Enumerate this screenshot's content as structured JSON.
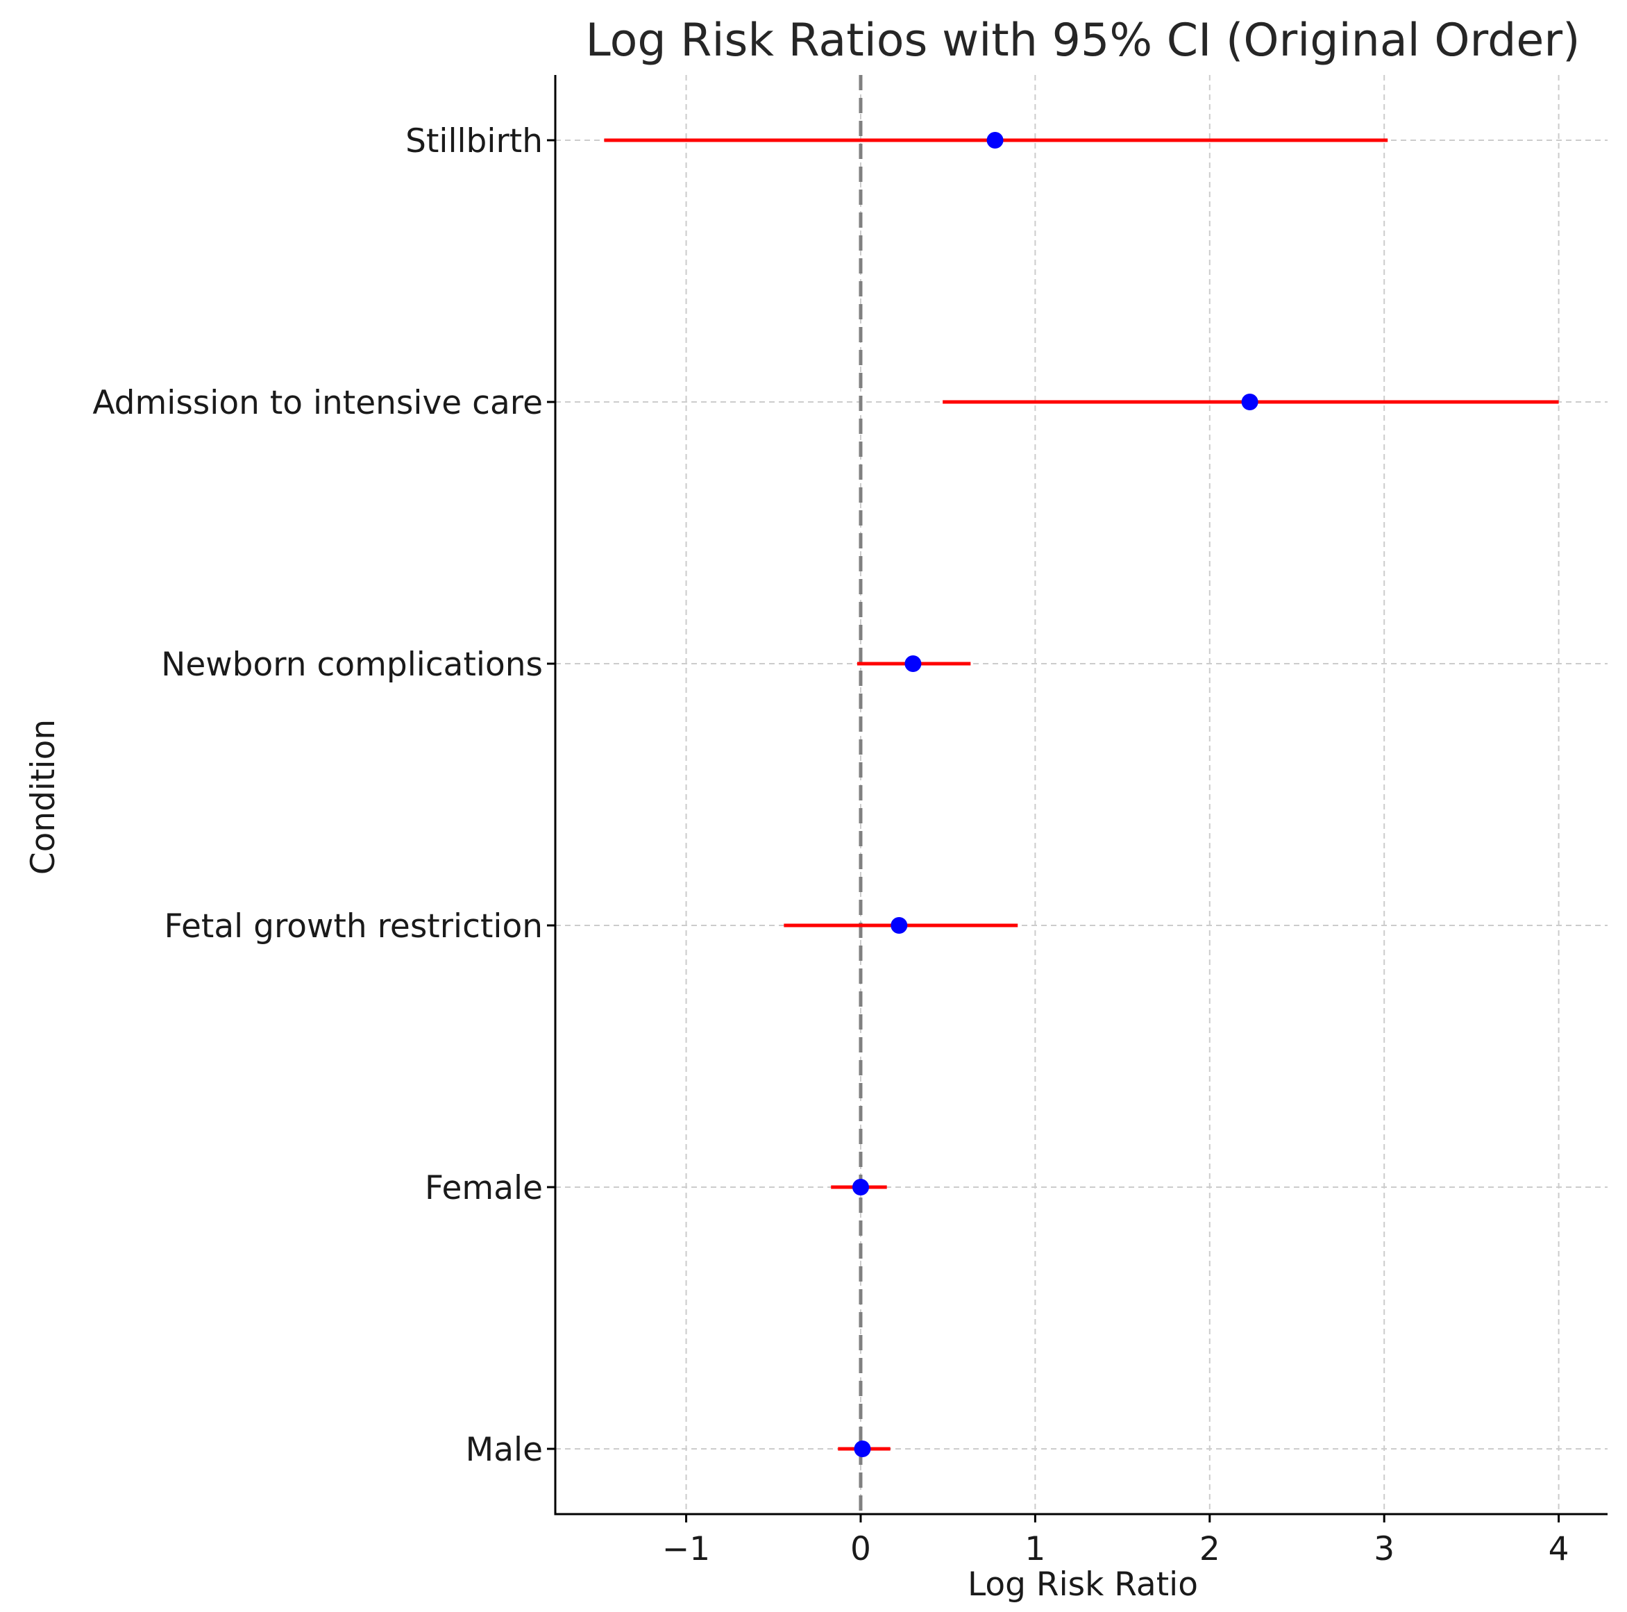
{
  "chart_data": {
    "type": "forest",
    "title": "Log Risk Ratios with 95% CI (Original Order)",
    "xlabel": "Log Risk Ratio",
    "ylabel": "Condition",
    "xlim": [
      -1.75,
      4.28
    ],
    "xticks": [
      -1,
      0,
      1,
      2,
      3,
      4
    ],
    "xtick_labels": [
      "−1",
      "0",
      "1",
      "2",
      "3",
      "4"
    ],
    "reference_line": 0,
    "grid": true,
    "colors": {
      "point": "#0000ff",
      "ci": "#ff0000",
      "reference": "#808080"
    },
    "categories": [
      "Stillbirth",
      "Admission to intensive care",
      "Newborn complications",
      "Fetal growth restriction",
      "Female",
      "Male"
    ],
    "points": [
      {
        "label": "Stillbirth",
        "estimate": 0.77,
        "ci_low": -1.47,
        "ci_high": 3.02
      },
      {
        "label": "Admission to intensive care",
        "estimate": 2.23,
        "ci_low": 0.47,
        "ci_high": 4.0
      },
      {
        "label": "Newborn complications",
        "estimate": 0.3,
        "ci_low": -0.02,
        "ci_high": 0.63
      },
      {
        "label": "Fetal growth restriction",
        "estimate": 0.22,
        "ci_low": -0.44,
        "ci_high": 0.9
      },
      {
        "label": "Female",
        "estimate": 0.0,
        "ci_low": -0.17,
        "ci_high": 0.15
      },
      {
        "label": "Male",
        "estimate": 0.01,
        "ci_low": -0.13,
        "ci_high": 0.17
      }
    ]
  }
}
